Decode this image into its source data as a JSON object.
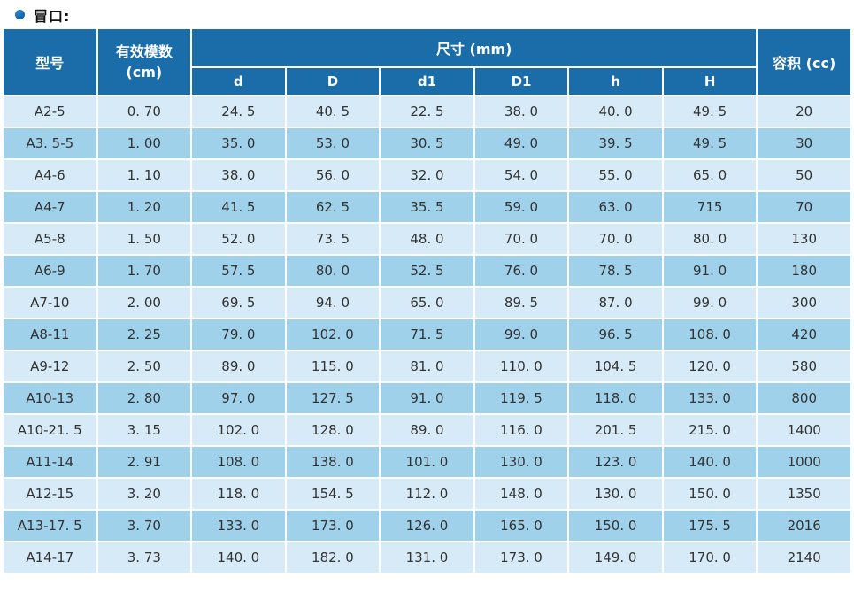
{
  "page": {
    "title": "冒口:"
  },
  "table": {
    "header": {
      "model": "型号",
      "modulus": [
        "有效模数",
        "(cm)"
      ],
      "size_group": "尺寸 (mm)",
      "size_columns": [
        "d",
        "D",
        "d1",
        "D1",
        "h",
        "H"
      ],
      "volume": "容积 (cc)"
    },
    "rows": [
      [
        "A2-5",
        "0. 70",
        "24. 5",
        "40. 5",
        "22. 5",
        "38. 0",
        "40. 0",
        "49. 5",
        "20"
      ],
      [
        "A3. 5-5",
        "1. 00",
        "35. 0",
        "53. 0",
        "30. 5",
        "49. 0",
        "39. 5",
        "49. 5",
        "30"
      ],
      [
        "A4-6",
        "1. 10",
        "38. 0",
        "56. 0",
        "32. 0",
        "54. 0",
        "55. 0",
        "65. 0",
        "50"
      ],
      [
        "A4-7",
        "1. 20",
        "41. 5",
        "62. 5",
        "35. 5",
        "59. 0",
        "63. 0",
        "715",
        "70"
      ],
      [
        "A5-8",
        "1. 50",
        "52. 0",
        "73. 5",
        "48. 0",
        "70. 0",
        "70. 0",
        "80. 0",
        "130"
      ],
      [
        "A6-9",
        "1. 70",
        "57. 5",
        "80. 0",
        "52. 5",
        "76. 0",
        "78. 5",
        "91. 0",
        "180"
      ],
      [
        "A7-10",
        "2. 00",
        "69. 5",
        "94. 0",
        "65. 0",
        "89. 5",
        "87. 0",
        "99. 0",
        "300"
      ],
      [
        "A8-11",
        "2. 25",
        "79. 0",
        "102. 0",
        "71. 5",
        "99. 0",
        "96. 5",
        "108. 0",
        "420"
      ],
      [
        "A9-12",
        "2. 50",
        "89. 0",
        "115. 0",
        "81. 0",
        "110. 0",
        "104. 5",
        "120. 0",
        "580"
      ],
      [
        "A10-13",
        "2. 80",
        "97. 0",
        "127. 5",
        "91. 0",
        "119. 5",
        "118. 0",
        "133. 0",
        "800"
      ],
      [
        "A10-21. 5",
        "3. 15",
        "102. 0",
        "128. 0",
        "89. 0",
        "116. 0",
        "201. 5",
        "215. 0",
        "1400"
      ],
      [
        "A11-14",
        "2. 91",
        "108. 0",
        "138. 0",
        "101. 0",
        "130. 0",
        "123. 0",
        "140. 0",
        "1000"
      ],
      [
        "A12-15",
        "3. 20",
        "118. 0",
        "154. 5",
        "112. 0",
        "148. 0",
        "130. 0",
        "150. 0",
        "1350"
      ],
      [
        "A13-17. 5",
        "3. 70",
        "133. 0",
        "173. 0",
        "126. 0",
        "165. 0",
        "150. 0",
        "175. 5",
        "2016"
      ],
      [
        "A14-17",
        "3. 73",
        "140. 0",
        "182. 0",
        "131. 0",
        "173. 0",
        "149. 0",
        "170. 0",
        "2140"
      ]
    ]
  },
  "colors": {
    "header_bg": "#1b6daa",
    "row_light": "#d6eaf7",
    "row_dark": "#9fd1ea",
    "grid": "#ffffff",
    "bullet": "#0f63a6",
    "text": "#333333"
  }
}
